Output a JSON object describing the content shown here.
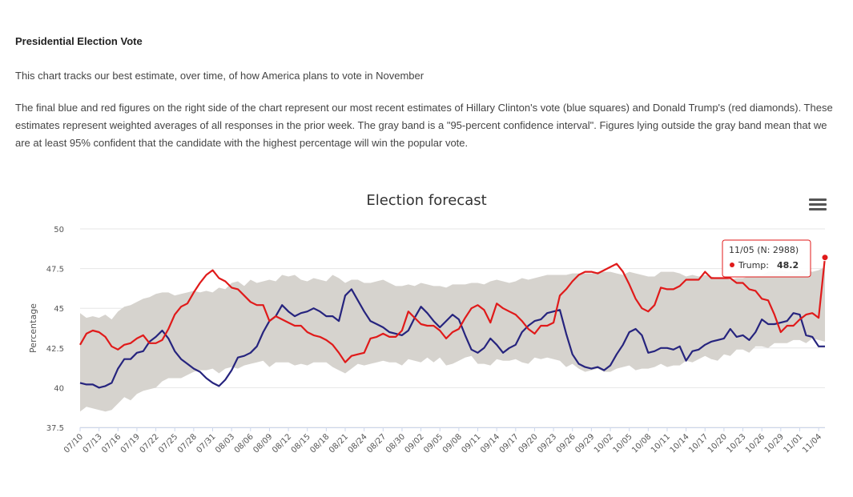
{
  "intro": {
    "heading": "Presidential Election Vote",
    "paragraph1": "This chart tracks our best estimate, over time, of how America plans to vote in November",
    "paragraph2": "The final blue and red figures on the right side of the chart represent our most recent estimates of Hillary Clinton's vote (blue squares) and Donald Trump's (red diamonds). These estimates represent weighted averages of all responses in the prior week. The gray band is a \"95-percent confidence interval\". Figures lying outside the gray band mean that we are at least 95% confident that the candidate with the highest percentage will win the popular vote."
  },
  "menu": {
    "icon": "hamburger-menu-icon"
  },
  "tooltip": {
    "header": "11/05 (N: 2988)",
    "series_label": "Trump:",
    "value": "48.2"
  },
  "chart_data": {
    "type": "line",
    "title": "Election forecast",
    "xlabel": "",
    "ylabel": "Percentage",
    "ylim": [
      37.5,
      50
    ],
    "yticks": [
      "37.5",
      "40",
      "42.5",
      "45",
      "47.5",
      "50"
    ],
    "grid": true,
    "x_tick_labels": [
      "07/10",
      "07/13",
      "07/16",
      "07/19",
      "07/22",
      "07/25",
      "07/28",
      "07/31",
      "08/03",
      "08/06",
      "08/09",
      "08/12",
      "08/15",
      "08/18",
      "08/21",
      "08/24",
      "08/27",
      "08/30",
      "09/02",
      "09/05",
      "09/08",
      "09/11",
      "09/14",
      "09/17",
      "09/20",
      "09/23",
      "09/26",
      "09/29",
      "10/02",
      "10/05",
      "10/08",
      "10/11",
      "10/14",
      "10/17",
      "10/20",
      "10/23",
      "10/26",
      "10/29",
      "11/01",
      "11/04"
    ],
    "days": 119,
    "colors": {
      "red": "#e01a1a",
      "blue": "#26247e",
      "band": "#d6d3ce"
    },
    "series": [
      {
        "name": "Trump",
        "color": "#e01a1a",
        "values": [
          42.7,
          43.4,
          43.6,
          43.5,
          43.2,
          42.6,
          42.4,
          42.7,
          42.8,
          43.1,
          43.3,
          42.8,
          42.8,
          43.0,
          43.7,
          44.6,
          45.1,
          45.3,
          46.0,
          46.6,
          47.1,
          47.4,
          46.9,
          46.7,
          46.3,
          46.2,
          45.8,
          45.4,
          45.2,
          45.2,
          44.2,
          44.5,
          44.3,
          44.1,
          43.9,
          43.9,
          43.5,
          43.3,
          43.2,
          43.0,
          42.7,
          42.2,
          41.6,
          42.0,
          42.1,
          42.2,
          43.1,
          43.2,
          43.4,
          43.2,
          43.2,
          43.6,
          44.8,
          44.4,
          44.0,
          43.9,
          43.9,
          43.6,
          43.1,
          43.5,
          43.7,
          44.4,
          45.0,
          45.2,
          44.9,
          44.1,
          45.3,
          45.0,
          44.8,
          44.6,
          44.2,
          43.7,
          43.4,
          43.9,
          43.9,
          44.1,
          45.8,
          46.2,
          46.7,
          47.1,
          47.3,
          47.3,
          47.2,
          47.4,
          47.6,
          47.8,
          47.3,
          46.5,
          45.6,
          45.0,
          44.8,
          45.2,
          46.3,
          46.2,
          46.2,
          46.4,
          46.8,
          46.8,
          46.8,
          47.3,
          46.9,
          46.9,
          46.9,
          46.9,
          46.6,
          46.6,
          46.2,
          46.1,
          45.6,
          45.5,
          44.6,
          43.5,
          43.9,
          43.9,
          44.3,
          44.6,
          44.7,
          44.4,
          48.2
        ]
      },
      {
        "name": "Clinton",
        "color": "#26247e",
        "values": [
          40.3,
          40.2,
          40.2,
          40.0,
          40.1,
          40.3,
          41.2,
          41.8,
          41.8,
          42.2,
          42.3,
          42.9,
          43.2,
          43.6,
          43.1,
          42.3,
          41.8,
          41.5,
          41.2,
          41.0,
          40.6,
          40.3,
          40.1,
          40.5,
          41.1,
          41.9,
          42.0,
          42.2,
          42.6,
          43.5,
          44.2,
          44.5,
          45.2,
          44.8,
          44.5,
          44.7,
          44.8,
          45.0,
          44.8,
          44.5,
          44.5,
          44.2,
          45.8,
          46.2,
          45.5,
          44.8,
          44.2,
          44.0,
          43.8,
          43.5,
          43.4,
          43.3,
          43.6,
          44.4,
          45.1,
          44.7,
          44.2,
          43.8,
          44.2,
          44.6,
          44.3,
          43.3,
          42.4,
          42.2,
          42.5,
          43.1,
          42.7,
          42.2,
          42.5,
          42.7,
          43.5,
          43.9,
          44.2,
          44.3,
          44.7,
          44.8,
          44.9,
          43.4,
          42.1,
          41.5,
          41.3,
          41.2,
          41.3,
          41.1,
          41.4,
          42.1,
          42.7,
          43.5,
          43.7,
          43.3,
          42.2,
          42.3,
          42.5,
          42.5,
          42.4,
          42.6,
          41.7,
          42.3,
          42.4,
          42.7,
          42.9,
          43.0,
          43.1,
          43.7,
          43.2,
          43.3,
          43.0,
          43.5,
          44.3,
          44.0,
          44.0,
          44.1,
          44.2,
          44.7,
          44.6,
          43.3,
          43.2,
          42.6,
          42.6
        ]
      },
      {
        "name": "95-percent confidence interval",
        "color": "#d6d3ce",
        "low": [
          38.5,
          38.8,
          38.7,
          38.6,
          38.5,
          38.6,
          39.0,
          39.4,
          39.2,
          39.6,
          39.8,
          39.9,
          40.0,
          40.4,
          40.6,
          40.6,
          40.6,
          40.8,
          41.0,
          41.1,
          41.1,
          41.2,
          40.9,
          41.2,
          41.3,
          41.2,
          41.4,
          41.5,
          41.6,
          41.7,
          41.3,
          41.6,
          41.6,
          41.6,
          41.4,
          41.5,
          41.4,
          41.6,
          41.6,
          41.6,
          41.3,
          41.1,
          40.9,
          41.2,
          41.5,
          41.4,
          41.5,
          41.6,
          41.7,
          41.6,
          41.6,
          41.4,
          41.8,
          41.7,
          41.6,
          41.9,
          41.6,
          41.9,
          41.4,
          41.5,
          41.7,
          41.9,
          42.0,
          41.5,
          41.5,
          41.4,
          41.8,
          41.7,
          41.7,
          41.8,
          41.6,
          41.5,
          41.9,
          41.8,
          41.9,
          41.8,
          41.7,
          41.3,
          41.5,
          41.2,
          41.0,
          41.1,
          41.2,
          41.0,
          41.0,
          41.2,
          41.3,
          41.4,
          41.1,
          41.2,
          41.2,
          41.3,
          41.5,
          41.3,
          41.4,
          41.4,
          41.7,
          41.6,
          41.8,
          42.0,
          41.8,
          41.7,
          42.1,
          42.0,
          42.4,
          42.4,
          42.2,
          42.6,
          42.6,
          42.5,
          42.8,
          42.8,
          42.8,
          43.0,
          43.0,
          42.8,
          43.1,
          43.0,
          42.9
        ],
        "high": [
          44.7,
          44.4,
          44.5,
          44.4,
          44.6,
          44.3,
          44.8,
          45.1,
          45.2,
          45.4,
          45.6,
          45.7,
          45.9,
          46.0,
          46.0,
          45.8,
          45.9,
          46.0,
          46.1,
          46.0,
          46.1,
          46.0,
          46.3,
          46.2,
          46.6,
          46.7,
          46.4,
          46.8,
          46.6,
          46.7,
          46.8,
          46.7,
          47.1,
          47.0,
          47.1,
          46.8,
          46.7,
          46.9,
          46.8,
          46.7,
          47.1,
          46.9,
          46.6,
          46.8,
          46.8,
          46.6,
          46.6,
          46.7,
          46.8,
          46.6,
          46.4,
          46.4,
          46.5,
          46.4,
          46.6,
          46.5,
          46.4,
          46.4,
          46.3,
          46.5,
          46.5,
          46.5,
          46.6,
          46.6,
          46.5,
          46.7,
          46.8,
          46.7,
          46.6,
          46.7,
          46.9,
          46.8,
          46.9,
          47.0,
          47.1,
          47.1,
          47.1,
          47.1,
          47.2,
          47.2,
          47.2,
          47.2,
          47.3,
          47.3,
          47.3,
          47.2,
          47.1,
          47.3,
          47.2,
          47.1,
          47.0,
          47.0,
          47.3,
          47.3,
          47.3,
          47.2,
          47.0,
          47.1,
          47.0,
          47.1,
          47.0,
          46.9,
          46.9,
          46.8,
          46.9,
          46.9,
          47.0,
          47.0,
          47.1,
          47.3,
          47.3,
          47.4,
          47.3,
          47.3,
          47.4,
          47.4,
          47.3,
          47.4,
          47.6
        ]
      }
    ],
    "legend": "none"
  }
}
